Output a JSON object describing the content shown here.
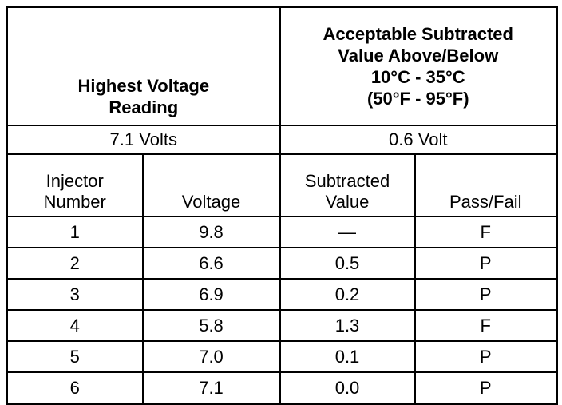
{
  "header": {
    "left_title_lines": [
      "Highest Voltage",
      "Reading"
    ],
    "right_title_lines": [
      "Acceptable Subtracted",
      "Value Above/Below",
      "10°C - 35°C",
      "(50°F - 95°F)"
    ],
    "left_value": "7.1 Volts",
    "right_value": "0.6 Volt"
  },
  "table": {
    "columns": [
      [
        "Injector",
        "Number"
      ],
      [
        "Voltage"
      ],
      [
        "Subtracted",
        "Value"
      ],
      [
        "Pass/Fail"
      ]
    ],
    "rows": [
      [
        "1",
        "9.8",
        "—",
        "F"
      ],
      [
        "2",
        "6.6",
        "0.5",
        "P"
      ],
      [
        "3",
        "6.9",
        "0.2",
        "P"
      ],
      [
        "4",
        "5.8",
        "1.3",
        "F"
      ],
      [
        "5",
        "7.0",
        "0.1",
        "P"
      ],
      [
        "6",
        "7.1",
        "0.0",
        "P"
      ]
    ]
  }
}
